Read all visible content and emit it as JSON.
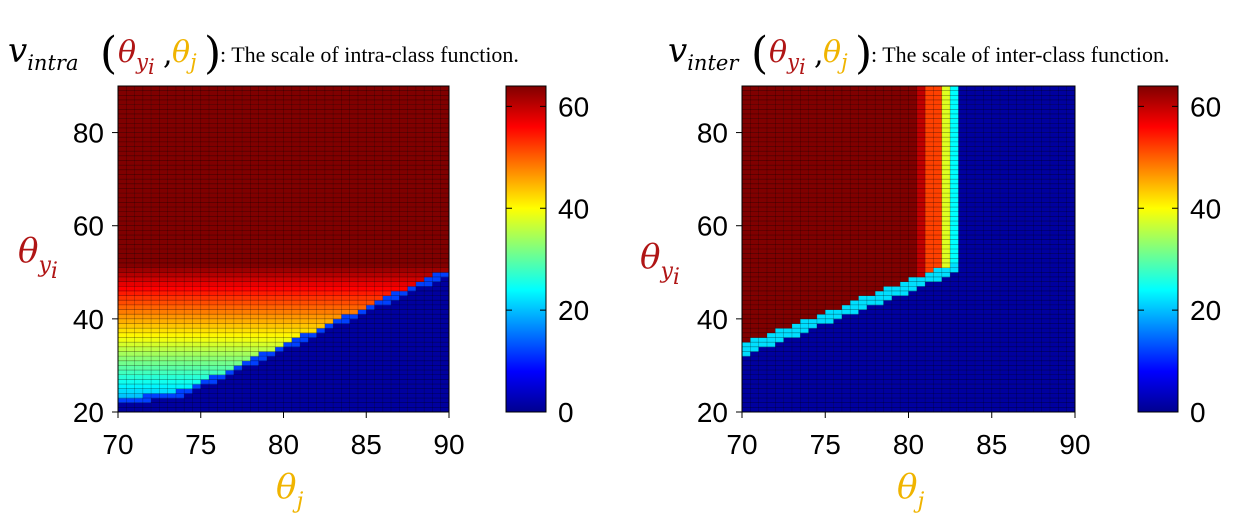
{
  "colors": {
    "theta_yi": "#b01515",
    "theta_j": "#f0b400"
  },
  "chart_data": [
    {
      "type": "heatmap",
      "caption": {
        "symbol": "v",
        "subscript": "intra",
        "arg1": "θ",
        "arg1_sub": "y",
        "arg1_subsub": "i",
        "arg2": "θ",
        "arg2_sub": "j",
        "text": ": The scale of intra-class function."
      },
      "xlabel": {
        "symbol": "θ",
        "sub": "j"
      },
      "ylabel": {
        "symbol": "θ",
        "sub": "y",
        "subsub": "i"
      },
      "xlim": [
        70,
        90
      ],
      "ylim": [
        20,
        90
      ],
      "x_ticks": [
        "70",
        "75",
        "80",
        "85",
        "90"
      ],
      "y_ticks": [
        "20",
        "40",
        "60",
        "80"
      ],
      "colorbar": {
        "range": [
          0,
          64
        ],
        "ticks": [
          "0",
          "20",
          "40",
          "60"
        ],
        "colormap": "jet"
      },
      "grid": true,
      "boundary": {
        "x": [
          70,
          74,
          90
        ],
        "y": [
          22,
          24,
          50
        ],
        "note_values_above": "increase with theta_yi from ~18 to ~64"
      }
    },
    {
      "type": "heatmap",
      "caption": {
        "symbol": "v",
        "subscript": "inter",
        "arg1": "θ",
        "arg1_sub": "y",
        "arg1_subsub": "i",
        "arg2": "θ",
        "arg2_sub": "j",
        "text": ": The scale of inter-class function."
      },
      "xlabel": {
        "symbol": "θ",
        "sub": "j"
      },
      "ylabel": {
        "symbol": "θ",
        "sub": "y",
        "subsub": "i"
      },
      "xlim": [
        70,
        90
      ],
      "ylim": [
        20,
        90
      ],
      "x_ticks": [
        "70",
        "75",
        "80",
        "85",
        "90"
      ],
      "y_ticks": [
        "20",
        "40",
        "60",
        "80"
      ],
      "colorbar": {
        "range": [
          0,
          64
        ],
        "ticks": [
          "0",
          "20",
          "40",
          "60"
        ],
        "colormap": "jet"
      },
      "grid": true,
      "boundary": {
        "x": [
          70,
          83
        ],
        "y": [
          33,
          51
        ],
        "vertical_edge_x": 83,
        "note_values_left": "~64 saturated"
      }
    }
  ]
}
